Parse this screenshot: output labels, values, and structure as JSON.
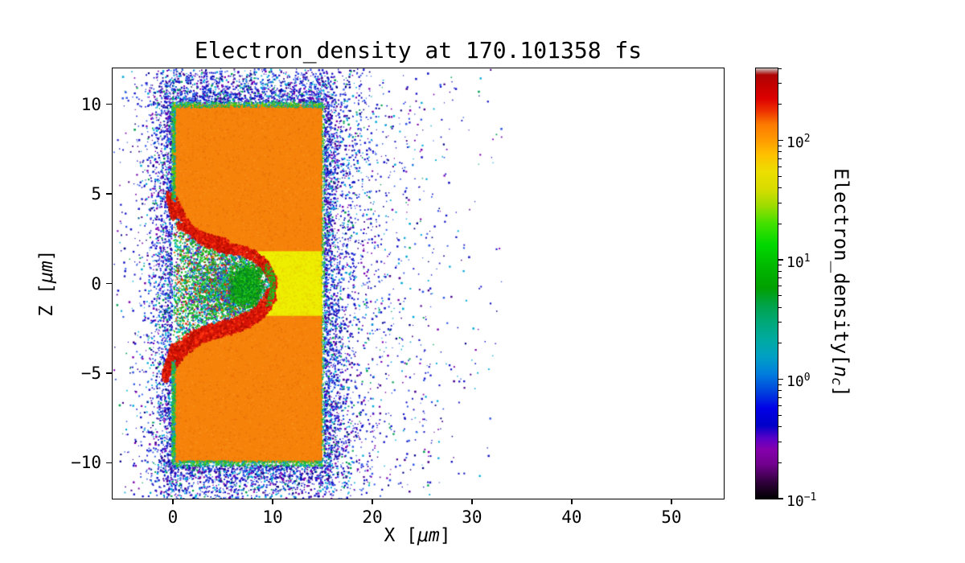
{
  "figure": {
    "title": "Electron_density at 170.101358 fs",
    "xlabel": {
      "pre": "X [",
      "unit": "μm",
      "post": "]"
    },
    "ylabel": {
      "pre": "Z [",
      "unit": "μm",
      "post": "]"
    },
    "colorbar_label": {
      "pre": "Electron_density[",
      "var": "n",
      "sub": "c",
      "post": "]"
    },
    "x_ticks": [
      {
        "v": 0,
        "label": "0"
      },
      {
        "v": 10,
        "label": "10"
      },
      {
        "v": 20,
        "label": "20"
      },
      {
        "v": 30,
        "label": "30"
      },
      {
        "v": 40,
        "label": "40"
      },
      {
        "v": 50,
        "label": "50"
      }
    ],
    "z_ticks": [
      {
        "v": 10,
        "label": "10"
      },
      {
        "v": 5,
        "label": "5"
      },
      {
        "v": 0,
        "label": "0"
      },
      {
        "v": -5,
        "label": "−5"
      },
      {
        "v": -10,
        "label": "−10"
      }
    ],
    "colorbar_ticks": [
      {
        "v": 100,
        "base": "10",
        "exp": "2"
      },
      {
        "v": 10,
        "base": "10",
        "exp": "1"
      },
      {
        "v": 1,
        "base": "10",
        "exp": "0"
      },
      {
        "v": 0.1,
        "base": "10",
        "exp": "−1"
      }
    ]
  },
  "chart_data": {
    "type": "heatmap",
    "title": "Electron_density at 170.101358 fs",
    "time_fs": 170.101358,
    "xlabel": "X [μm]",
    "ylabel": "Z [μm]",
    "colorbar_label": "Electron_density[n_c]",
    "xlim": [
      -6.05,
      55.25
    ],
    "zlim": [
      -12,
      12
    ],
    "x_ticks": [
      0,
      10,
      20,
      30,
      40,
      50
    ],
    "z_ticks": [
      -10,
      -5,
      0,
      5,
      10
    ],
    "color_scale": "log",
    "clim": [
      0.1,
      400
    ],
    "colormap": "nipy_spectral",
    "grid": false,
    "colormap_stops": [
      [
        0,
        "#000000"
      ],
      [
        0.035,
        "#2b0036"
      ],
      [
        0.08,
        "#71008e"
      ],
      [
        0.115,
        "#8400ad"
      ],
      [
        0.14,
        "#5a00c8"
      ],
      [
        0.17,
        "#0000c8"
      ],
      [
        0.21,
        "#0000e6"
      ],
      [
        0.25,
        "#0044dd"
      ],
      [
        0.29,
        "#007ddd"
      ],
      [
        0.33,
        "#00a0c4"
      ],
      [
        0.37,
        "#00aaa0"
      ],
      [
        0.41,
        "#00a878"
      ],
      [
        0.45,
        "#00a348"
      ],
      [
        0.49,
        "#00a000"
      ],
      [
        0.54,
        "#00b800"
      ],
      [
        0.59,
        "#00d800"
      ],
      [
        0.64,
        "#44e000"
      ],
      [
        0.68,
        "#9cdc00"
      ],
      [
        0.72,
        "#d8dc00"
      ],
      [
        0.76,
        "#ecde00"
      ],
      [
        0.8,
        "#ffc000"
      ],
      [
        0.84,
        "#ff9400"
      ],
      [
        0.87,
        "#fb7a00"
      ],
      [
        0.9,
        "#ee3300"
      ],
      [
        0.93,
        "#dd0000"
      ],
      [
        0.96,
        "#c40000"
      ],
      [
        0.985,
        "#ad0505"
      ],
      [
        1,
        "#c9c0bd"
      ]
    ],
    "features": {
      "target_slab": {
        "x_range_um": [
          0,
          15
        ],
        "z_range_um": [
          -10,
          10
        ],
        "density_nc": 80,
        "color": "#f6820a"
      },
      "low_density_channel": {
        "x_range_um": [
          8,
          15
        ],
        "z_range_um": [
          -1.8,
          1.8
        ],
        "density_nc": 30,
        "color": "#eeee00"
      },
      "cavity": {
        "tip_um": [
          10,
          0
        ],
        "mouth_z_range_um": [
          -4.3,
          4.6
        ],
        "interior_density_nc": [
          1,
          15
        ],
        "rim_density_nc": 200,
        "rim_color": "#d81508",
        "upper_boundary_um": [
          [
            0,
            4.6
          ],
          [
            0.8,
            3.8
          ],
          [
            1.6,
            3.1
          ],
          [
            2.4,
            2.7
          ],
          [
            3.2,
            2.4
          ],
          [
            4,
            2.2
          ],
          [
            5,
            2.05
          ],
          [
            6,
            1.95
          ],
          [
            7,
            1.85
          ],
          [
            8,
            1.62
          ],
          [
            8.8,
            1.3
          ],
          [
            9.4,
            0.9
          ],
          [
            9.9,
            0.35
          ],
          [
            10.1,
            -0.05
          ]
        ],
        "lower_boundary_um": [
          [
            9.9,
            -0.5
          ],
          [
            9.4,
            -1.0
          ],
          [
            8.8,
            -1.45
          ],
          [
            8,
            -1.8
          ],
          [
            7,
            -2.1
          ],
          [
            6,
            -2.3
          ],
          [
            5,
            -2.45
          ],
          [
            4,
            -2.6
          ],
          [
            3.2,
            -2.75
          ],
          [
            2.4,
            -2.95
          ],
          [
            1.6,
            -3.2
          ],
          [
            0.8,
            -3.6
          ],
          [
            0,
            -4.3
          ]
        ]
      },
      "scattered_electron_halo": {
        "x_extent_um": [
          -5,
          32
        ],
        "z_extent_um": [
          -12,
          12
        ],
        "density_nc": [
          0.1,
          2
        ]
      }
    }
  }
}
